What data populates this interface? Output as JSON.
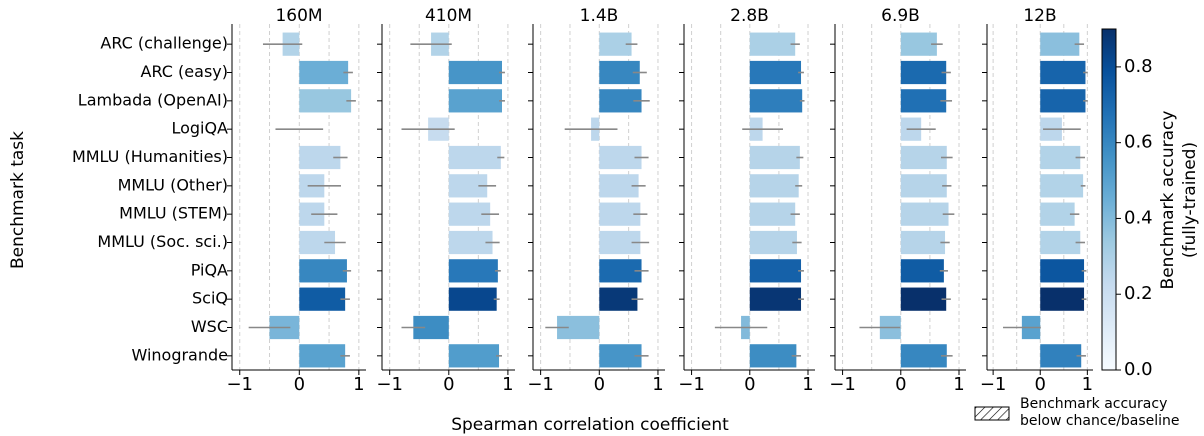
{
  "categories": [
    "ARC (challenge)",
    "ARC (easy)",
    "Lambada (OpenAI)",
    "LogiQA",
    "MMLU (Humanities)",
    "MMLU (Other)",
    "MMLU (STEM)",
    "MMLU (Soc. sci.)",
    "PiQA",
    "SciQ",
    "WSC",
    "Winogrande"
  ],
  "ylabel": "Benchmark task",
  "xlabel": "Spearman correlation coefficient",
  "colorbar": {
    "colormap": "Blues",
    "label": [
      "Benchmark accuracy",
      "(fully-trained)"
    ],
    "ylim": [
      0,
      0.9
    ],
    "yticks": [
      {
        "value": 0,
        "label": "0.0"
      },
      0.2,
      0.4,
      0.6,
      0.8
    ]
  },
  "legend_label": [
    "Benchmark accuracy",
    "below chance/baseline"
  ],
  "chart_data": [
    {
      "type": "bar",
      "title": "160M",
      "xlim": [
        -1.13,
        1.12
      ],
      "xticks": [
        {
          "value": -1,
          "label": "−1"
        },
        0,
        1
      ],
      "xgrid": [
        -1,
        -0.5,
        0,
        0.5,
        1
      ],
      "values": [
        -0.28,
        0.82,
        0.87,
        0.0,
        0.69,
        0.42,
        0.42,
        0.6,
        0.8,
        0.77,
        -0.5,
        0.77
      ],
      "errors": [
        0.33,
        0.08,
        0.08,
        0.4,
        0.12,
        0.28,
        0.22,
        0.18,
        0.07,
        0.08,
        0.35,
        0.08
      ],
      "accuracy": [
        0.28,
        0.45,
        0.35,
        0.2,
        0.25,
        0.25,
        0.25,
        0.25,
        0.6,
        0.75,
        0.42,
        0.5
      ]
    },
    {
      "type": "bar",
      "title": "410M",
      "xlim": [
        -1.13,
        1.12
      ],
      "xticks": [
        {
          "value": -1,
          "label": "−1"
        },
        0,
        1
      ],
      "xgrid": [
        -1,
        -0.5,
        0,
        0.5,
        1
      ],
      "values": [
        -0.3,
        0.9,
        0.9,
        -0.35,
        0.88,
        0.65,
        0.7,
        0.74,
        0.83,
        0.81,
        -0.6,
        0.85
      ],
      "errors": [
        0.35,
        0.05,
        0.05,
        0.45,
        0.06,
        0.15,
        0.15,
        0.12,
        0.05,
        0.05,
        0.2,
        0.05
      ],
      "accuracy": [
        0.28,
        0.55,
        0.5,
        0.22,
        0.25,
        0.25,
        0.25,
        0.25,
        0.65,
        0.82,
        0.58,
        0.52
      ]
    },
    {
      "type": "bar",
      "title": "1.4B",
      "xlim": [
        -1.13,
        1.12
      ],
      "xticks": [
        {
          "value": -1,
          "label": "−1"
        },
        0,
        1
      ],
      "xgrid": [
        -1,
        -0.5,
        0,
        0.5,
        1
      ],
      "values": [
        0.55,
        0.69,
        0.72,
        -0.14,
        0.72,
        0.67,
        0.7,
        0.7,
        0.72,
        0.65,
        -0.72,
        0.72
      ],
      "errors": [
        0.1,
        0.12,
        0.14,
        0.45,
        0.12,
        0.12,
        0.12,
        0.15,
        0.12,
        0.1,
        0.2,
        0.12
      ],
      "accuracy": [
        0.3,
        0.6,
        0.6,
        0.25,
        0.25,
        0.25,
        0.25,
        0.25,
        0.7,
        0.87,
        0.38,
        0.55
      ]
    },
    {
      "type": "bar",
      "title": "2.8B",
      "xlim": [
        -1.13,
        1.12
      ],
      "xticks": [
        {
          "value": -1,
          "label": "−1"
        },
        0,
        1
      ],
      "xgrid": [
        -1,
        -0.5,
        0,
        0.5,
        1
      ],
      "values": [
        0.78,
        0.88,
        0.9,
        0.22,
        0.86,
        0.84,
        0.78,
        0.81,
        0.88,
        0.88,
        -0.15,
        0.8
      ],
      "errors": [
        0.08,
        0.05,
        0.04,
        0.35,
        0.06,
        0.06,
        0.08,
        0.08,
        0.05,
        0.05,
        0.45,
        0.08
      ],
      "accuracy": [
        0.3,
        0.65,
        0.63,
        0.25,
        0.27,
        0.27,
        0.27,
        0.27,
        0.73,
        0.88,
        0.4,
        0.58
      ]
    },
    {
      "type": "bar",
      "title": "6.9B",
      "xlim": [
        -1.13,
        1.12
      ],
      "xticks": [
        {
          "value": -1,
          "label": "−1"
        },
        0,
        1
      ],
      "xgrid": [
        -1,
        -0.5,
        0,
        0.5,
        1
      ],
      "values": [
        0.62,
        0.78,
        0.78,
        0.35,
        0.79,
        0.79,
        0.82,
        0.76,
        0.74,
        0.78,
        -0.36,
        0.79
      ],
      "errors": [
        0.1,
        0.08,
        0.1,
        0.25,
        0.1,
        0.08,
        0.1,
        0.08,
        0.07,
        0.08,
        0.35,
        0.1
      ],
      "accuracy": [
        0.35,
        0.7,
        0.68,
        0.25,
        0.27,
        0.27,
        0.27,
        0.27,
        0.75,
        0.9,
        0.38,
        0.6
      ]
    },
    {
      "type": "bar",
      "title": "12B",
      "xlim": [
        -1.13,
        1.12
      ],
      "xticks": [
        {
          "value": -1,
          "label": "−1"
        },
        0,
        1
      ],
      "xgrid": [
        -1,
        -0.5,
        0,
        0.5,
        1
      ],
      "values": [
        0.83,
        0.96,
        0.96,
        0.46,
        0.85,
        0.91,
        0.73,
        0.85,
        0.93,
        0.93,
        -0.39,
        0.87
      ],
      "errors": [
        0.1,
        0.05,
        0.05,
        0.4,
        0.1,
        0.05,
        0.1,
        0.1,
        0.05,
        0.05,
        0.4,
        0.1
      ],
      "accuracy": [
        0.38,
        0.72,
        0.72,
        0.25,
        0.28,
        0.28,
        0.28,
        0.28,
        0.77,
        0.9,
        0.5,
        0.62
      ]
    }
  ]
}
